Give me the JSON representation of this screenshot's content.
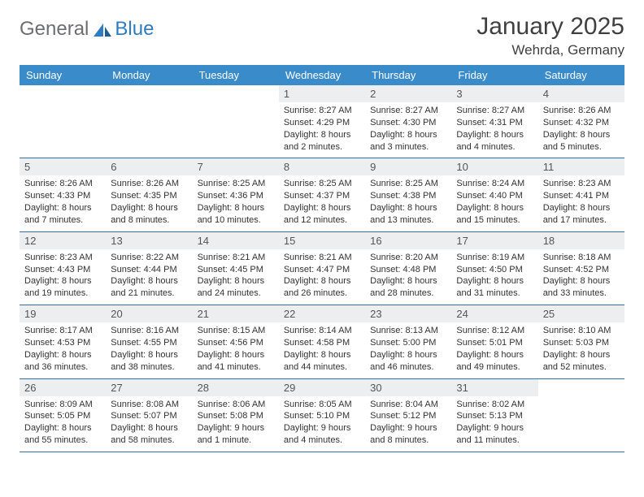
{
  "brand": {
    "part1": "General",
    "part2": "Blue"
  },
  "title": "January 2025",
  "location": "Wehrda, Germany",
  "colors": {
    "header_bg": "#3a8bca",
    "header_text": "#ffffff",
    "daynum_bg": "#eceef0",
    "row_border": "#2f6fa8",
    "brand_grey": "#6d6e71",
    "brand_blue": "#2f7bbf",
    "text": "#333333",
    "background": "#ffffff"
  },
  "typography": {
    "title_fontsize": 30,
    "location_fontsize": 17,
    "weekday_fontsize": 13,
    "daynum_fontsize": 13,
    "info_fontsize": 11
  },
  "weekdays": [
    "Sunday",
    "Monday",
    "Tuesday",
    "Wednesday",
    "Thursday",
    "Friday",
    "Saturday"
  ],
  "weeks": [
    [
      {
        "n": "",
        "sr": "",
        "ss": "",
        "dl": ""
      },
      {
        "n": "",
        "sr": "",
        "ss": "",
        "dl": ""
      },
      {
        "n": "",
        "sr": "",
        "ss": "",
        "dl": ""
      },
      {
        "n": "1",
        "sr": "Sunrise: 8:27 AM",
        "ss": "Sunset: 4:29 PM",
        "dl": "Daylight: 8 hours and 2 minutes."
      },
      {
        "n": "2",
        "sr": "Sunrise: 8:27 AM",
        "ss": "Sunset: 4:30 PM",
        "dl": "Daylight: 8 hours and 3 minutes."
      },
      {
        "n": "3",
        "sr": "Sunrise: 8:27 AM",
        "ss": "Sunset: 4:31 PM",
        "dl": "Daylight: 8 hours and 4 minutes."
      },
      {
        "n": "4",
        "sr": "Sunrise: 8:26 AM",
        "ss": "Sunset: 4:32 PM",
        "dl": "Daylight: 8 hours and 5 minutes."
      }
    ],
    [
      {
        "n": "5",
        "sr": "Sunrise: 8:26 AM",
        "ss": "Sunset: 4:33 PM",
        "dl": "Daylight: 8 hours and 7 minutes."
      },
      {
        "n": "6",
        "sr": "Sunrise: 8:26 AM",
        "ss": "Sunset: 4:35 PM",
        "dl": "Daylight: 8 hours and 8 minutes."
      },
      {
        "n": "7",
        "sr": "Sunrise: 8:25 AM",
        "ss": "Sunset: 4:36 PM",
        "dl": "Daylight: 8 hours and 10 minutes."
      },
      {
        "n": "8",
        "sr": "Sunrise: 8:25 AM",
        "ss": "Sunset: 4:37 PM",
        "dl": "Daylight: 8 hours and 12 minutes."
      },
      {
        "n": "9",
        "sr": "Sunrise: 8:25 AM",
        "ss": "Sunset: 4:38 PM",
        "dl": "Daylight: 8 hours and 13 minutes."
      },
      {
        "n": "10",
        "sr": "Sunrise: 8:24 AM",
        "ss": "Sunset: 4:40 PM",
        "dl": "Daylight: 8 hours and 15 minutes."
      },
      {
        "n": "11",
        "sr": "Sunrise: 8:23 AM",
        "ss": "Sunset: 4:41 PM",
        "dl": "Daylight: 8 hours and 17 minutes."
      }
    ],
    [
      {
        "n": "12",
        "sr": "Sunrise: 8:23 AM",
        "ss": "Sunset: 4:43 PM",
        "dl": "Daylight: 8 hours and 19 minutes."
      },
      {
        "n": "13",
        "sr": "Sunrise: 8:22 AM",
        "ss": "Sunset: 4:44 PM",
        "dl": "Daylight: 8 hours and 21 minutes."
      },
      {
        "n": "14",
        "sr": "Sunrise: 8:21 AM",
        "ss": "Sunset: 4:45 PM",
        "dl": "Daylight: 8 hours and 24 minutes."
      },
      {
        "n": "15",
        "sr": "Sunrise: 8:21 AM",
        "ss": "Sunset: 4:47 PM",
        "dl": "Daylight: 8 hours and 26 minutes."
      },
      {
        "n": "16",
        "sr": "Sunrise: 8:20 AM",
        "ss": "Sunset: 4:48 PM",
        "dl": "Daylight: 8 hours and 28 minutes."
      },
      {
        "n": "17",
        "sr": "Sunrise: 8:19 AM",
        "ss": "Sunset: 4:50 PM",
        "dl": "Daylight: 8 hours and 31 minutes."
      },
      {
        "n": "18",
        "sr": "Sunrise: 8:18 AM",
        "ss": "Sunset: 4:52 PM",
        "dl": "Daylight: 8 hours and 33 minutes."
      }
    ],
    [
      {
        "n": "19",
        "sr": "Sunrise: 8:17 AM",
        "ss": "Sunset: 4:53 PM",
        "dl": "Daylight: 8 hours and 36 minutes."
      },
      {
        "n": "20",
        "sr": "Sunrise: 8:16 AM",
        "ss": "Sunset: 4:55 PM",
        "dl": "Daylight: 8 hours and 38 minutes."
      },
      {
        "n": "21",
        "sr": "Sunrise: 8:15 AM",
        "ss": "Sunset: 4:56 PM",
        "dl": "Daylight: 8 hours and 41 minutes."
      },
      {
        "n": "22",
        "sr": "Sunrise: 8:14 AM",
        "ss": "Sunset: 4:58 PM",
        "dl": "Daylight: 8 hours and 44 minutes."
      },
      {
        "n": "23",
        "sr": "Sunrise: 8:13 AM",
        "ss": "Sunset: 5:00 PM",
        "dl": "Daylight: 8 hours and 46 minutes."
      },
      {
        "n": "24",
        "sr": "Sunrise: 8:12 AM",
        "ss": "Sunset: 5:01 PM",
        "dl": "Daylight: 8 hours and 49 minutes."
      },
      {
        "n": "25",
        "sr": "Sunrise: 8:10 AM",
        "ss": "Sunset: 5:03 PM",
        "dl": "Daylight: 8 hours and 52 minutes."
      }
    ],
    [
      {
        "n": "26",
        "sr": "Sunrise: 8:09 AM",
        "ss": "Sunset: 5:05 PM",
        "dl": "Daylight: 8 hours and 55 minutes."
      },
      {
        "n": "27",
        "sr": "Sunrise: 8:08 AM",
        "ss": "Sunset: 5:07 PM",
        "dl": "Daylight: 8 hours and 58 minutes."
      },
      {
        "n": "28",
        "sr": "Sunrise: 8:06 AM",
        "ss": "Sunset: 5:08 PM",
        "dl": "Daylight: 9 hours and 1 minute."
      },
      {
        "n": "29",
        "sr": "Sunrise: 8:05 AM",
        "ss": "Sunset: 5:10 PM",
        "dl": "Daylight: 9 hours and 4 minutes."
      },
      {
        "n": "30",
        "sr": "Sunrise: 8:04 AM",
        "ss": "Sunset: 5:12 PM",
        "dl": "Daylight: 9 hours and 8 minutes."
      },
      {
        "n": "31",
        "sr": "Sunrise: 8:02 AM",
        "ss": "Sunset: 5:13 PM",
        "dl": "Daylight: 9 hours and 11 minutes."
      },
      {
        "n": "",
        "sr": "",
        "ss": "",
        "dl": ""
      }
    ]
  ]
}
